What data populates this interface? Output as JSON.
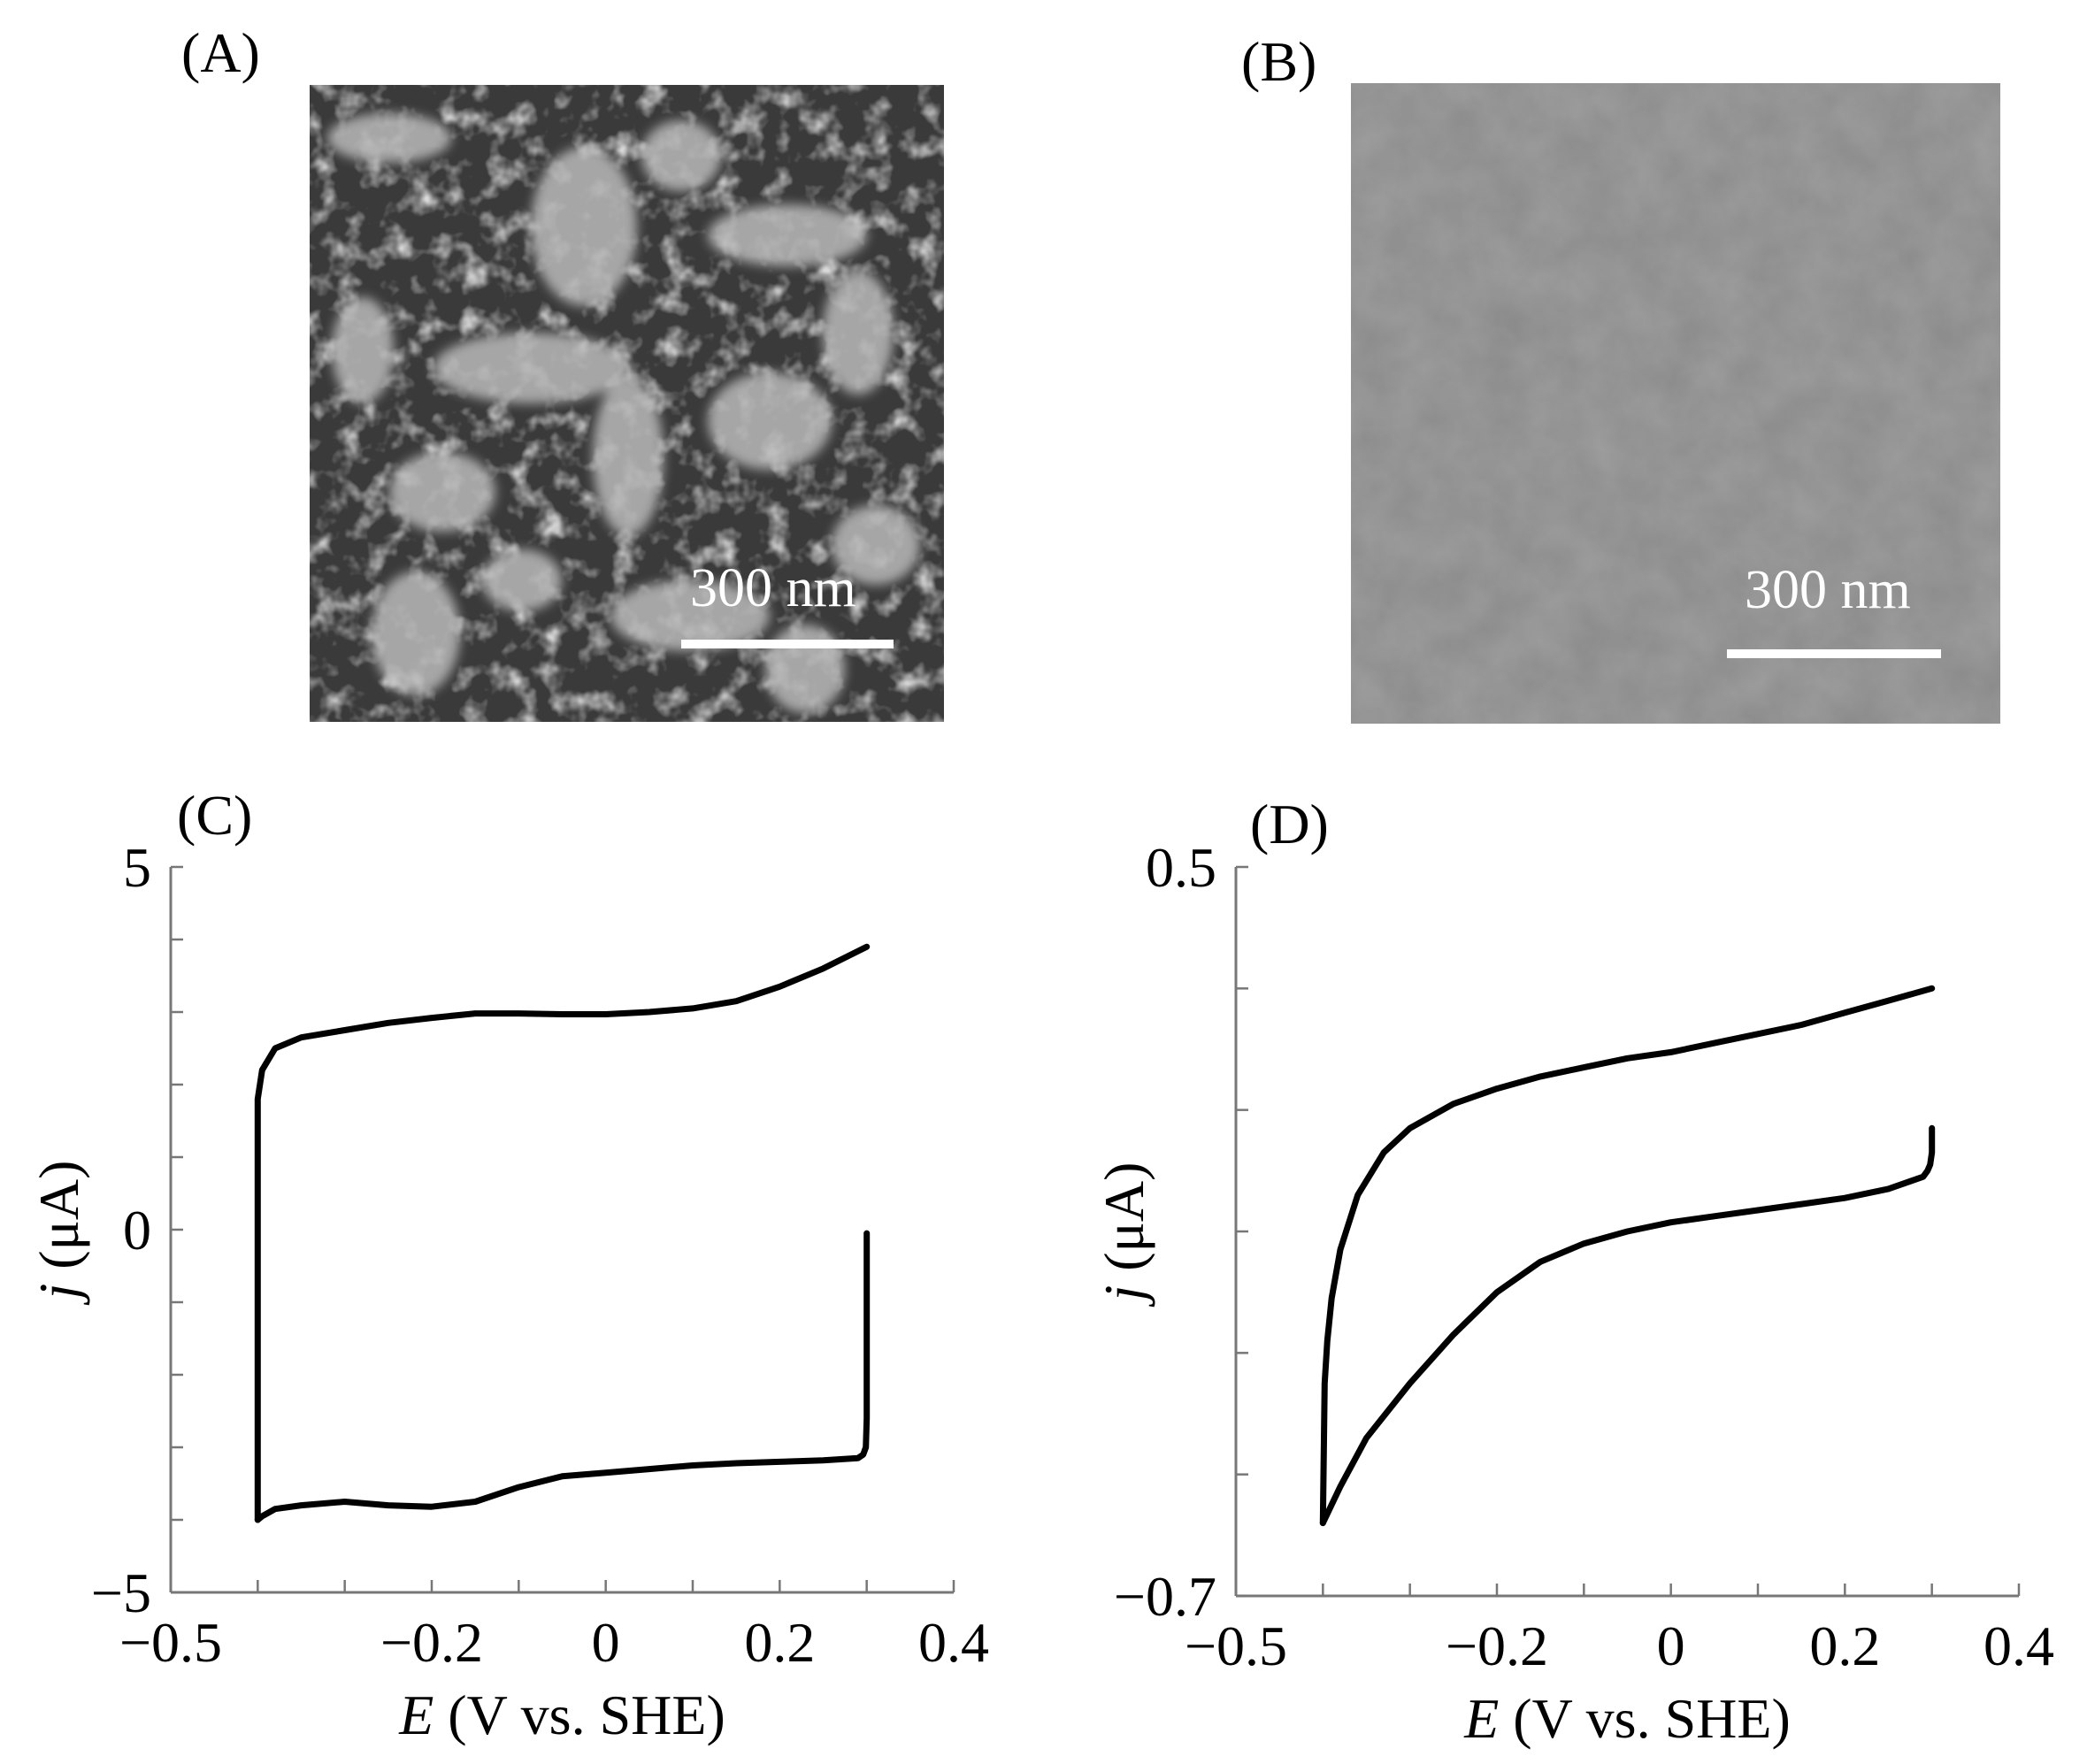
{
  "panels": {
    "a": {
      "label": "(A)",
      "scale_bar": "300 nm"
    },
    "b": {
      "label": "(B)",
      "scale_bar": "300 nm"
    },
    "c": {
      "label": "(C)"
    },
    "d": {
      "label": "(D)"
    }
  },
  "chart_data": [
    {
      "panel": "(C)",
      "type": "line",
      "xlabel_italic": "E",
      "xlabel_rest": " (V vs. SHE)",
      "ylabel_italic": "j",
      "ylabel_rest": " (μA)",
      "xlim": [
        -0.5,
        0.4
      ],
      "ylim": [
        -5,
        5
      ],
      "x_ticks": [
        -0.5,
        -0.2,
        0,
        0.2,
        0.4
      ],
      "x_tick_labels": [
        "−0.5",
        "−0.2",
        "0",
        "0.2",
        "0.4"
      ],
      "y_ticks": [
        -5,
        0,
        5
      ],
      "y_tick_labels": [
        "−5",
        "0",
        "5"
      ],
      "series": [
        {
          "x": [
            -0.4,
            -0.4,
            -0.395,
            -0.38,
            -0.35,
            -0.3,
            -0.25,
            -0.2,
            -0.15,
            -0.1,
            -0.05,
            0,
            0.05,
            0.1,
            0.15,
            0.2,
            0.25,
            0.3
          ],
          "y": [
            -4.0,
            1.8,
            2.2,
            2.5,
            2.65,
            2.75,
            2.85,
            2.92,
            2.98,
            2.98,
            2.97,
            2.97,
            3.0,
            3.05,
            3.15,
            3.35,
            3.6,
            3.9
          ]
        },
        {
          "x": [
            0.3,
            0.3,
            0.299,
            0.296,
            0.29,
            0.25,
            0.2,
            0.15,
            0.1,
            0.05,
            0,
            -0.05,
            -0.1,
            -0.15,
            -0.2,
            -0.25,
            -0.3,
            -0.35,
            -0.38,
            -0.395,
            -0.4
          ],
          "y": [
            -0.05,
            -2.6,
            -3.0,
            -3.1,
            -3.15,
            -3.18,
            -3.2,
            -3.22,
            -3.25,
            -3.3,
            -3.35,
            -3.4,
            -3.55,
            -3.75,
            -3.82,
            -3.8,
            -3.75,
            -3.8,
            -3.85,
            -3.95,
            -4.0
          ]
        }
      ]
    },
    {
      "panel": "(D)",
      "type": "line",
      "xlabel_italic": "E",
      "xlabel_rest": " (V vs. SHE)",
      "ylabel_italic": "j",
      "ylabel_rest": " (μA)",
      "xlim": [
        -0.5,
        0.4
      ],
      "ylim": [
        -0.7,
        0.5
      ],
      "x_ticks": [
        -0.5,
        -0.2,
        0,
        0.2,
        0.4
      ],
      "x_tick_labels": [
        "−0.5",
        "−0.2",
        "0",
        "0.2",
        "0.4"
      ],
      "y_ticks": [
        -0.7,
        0.5
      ],
      "y_tick_labels": [
        "−0.7",
        "0.5"
      ],
      "series": [
        {
          "x": [
            -0.4,
            -0.398,
            -0.395,
            -0.39,
            -0.38,
            -0.36,
            -0.33,
            -0.3,
            -0.25,
            -0.2,
            -0.15,
            -0.1,
            -0.05,
            0,
            0.05,
            0.1,
            0.15,
            0.2,
            0.25,
            0.3
          ],
          "y": [
            -0.58,
            -0.35,
            -0.28,
            -0.21,
            -0.13,
            -0.04,
            0.03,
            0.07,
            0.11,
            0.135,
            0.155,
            0.17,
            0.185,
            0.195,
            0.21,
            0.225,
            0.24,
            0.26,
            0.28,
            0.3
          ]
        },
        {
          "x": [
            0.3,
            0.3,
            0.298,
            0.295,
            0.29,
            0.25,
            0.2,
            0.15,
            0.1,
            0.05,
            0,
            -0.05,
            -0.1,
            -0.15,
            -0.2,
            -0.25,
            -0.3,
            -0.35,
            -0.38,
            -0.4
          ],
          "y": [
            0.07,
            0.03,
            0.01,
            0.0,
            -0.01,
            -0.03,
            -0.045,
            -0.055,
            -0.065,
            -0.075,
            -0.085,
            -0.1,
            -0.12,
            -0.15,
            -0.2,
            -0.27,
            -0.35,
            -0.44,
            -0.52,
            -0.58
          ]
        }
      ]
    }
  ]
}
